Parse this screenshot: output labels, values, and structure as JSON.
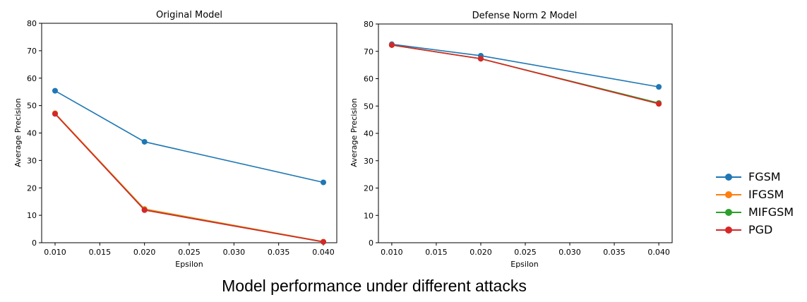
{
  "caption": "Model performance under different attacks",
  "colors": {
    "FGSM": "#1f77b4",
    "IFGSM": "#ff7f0e",
    "MIFGSM": "#2ca02c",
    "PGD": "#d62728"
  },
  "legend": {
    "placement": "right-of-figure",
    "items": [
      {
        "label": "FGSM",
        "color": "#1f77b4"
      },
      {
        "label": "IFGSM",
        "color": "#ff7f0e"
      },
      {
        "label": "MIFGSM",
        "color": "#2ca02c"
      },
      {
        "label": "PGD",
        "color": "#d62728"
      }
    ]
  },
  "chart_data": [
    {
      "type": "line",
      "title": "Original Model",
      "xlabel": "Epsilon",
      "ylabel": "Average Precision",
      "x": [
        0.01,
        0.02,
        0.04
      ],
      "xlim": [
        0.0085,
        0.0415
      ],
      "ylim": [
        0,
        80
      ],
      "xticks": [
        "0.010",
        "0.015",
        "0.020",
        "0.025",
        "0.030",
        "0.035",
        "0.040"
      ],
      "yticks": [
        "0",
        "10",
        "20",
        "30",
        "40",
        "50",
        "60",
        "70",
        "80"
      ],
      "grid": false,
      "series": [
        {
          "name": "FGSM",
          "values": [
            55.4,
            36.8,
            22.0
          ]
        },
        {
          "name": "IFGSM",
          "values": [
            47.2,
            12.3,
            0.4
          ]
        },
        {
          "name": "MIFGSM",
          "values": [
            47.0,
            12.0,
            0.3
          ]
        },
        {
          "name": "PGD",
          "values": [
            47.0,
            11.9,
            0.3
          ]
        }
      ]
    },
    {
      "type": "line",
      "title": "Defense Norm 2 Model",
      "xlabel": "Epsilon",
      "ylabel": "Average Precision",
      "x": [
        0.01,
        0.02,
        0.04
      ],
      "xlim": [
        0.0085,
        0.0415
      ],
      "ylim": [
        0,
        80
      ],
      "xticks": [
        "0.010",
        "0.015",
        "0.020",
        "0.025",
        "0.030",
        "0.035",
        "0.040"
      ],
      "yticks": [
        "0",
        "10",
        "20",
        "30",
        "40",
        "50",
        "60",
        "70",
        "80"
      ],
      "grid": false,
      "series": [
        {
          "name": "FGSM",
          "values": [
            72.6,
            68.4,
            57.0
          ]
        },
        {
          "name": "IFGSM",
          "values": [
            72.3,
            67.3,
            50.8
          ]
        },
        {
          "name": "MIFGSM",
          "values": [
            72.3,
            67.3,
            51.1
          ]
        },
        {
          "name": "PGD",
          "values": [
            72.3,
            67.3,
            50.8
          ]
        }
      ]
    }
  ]
}
